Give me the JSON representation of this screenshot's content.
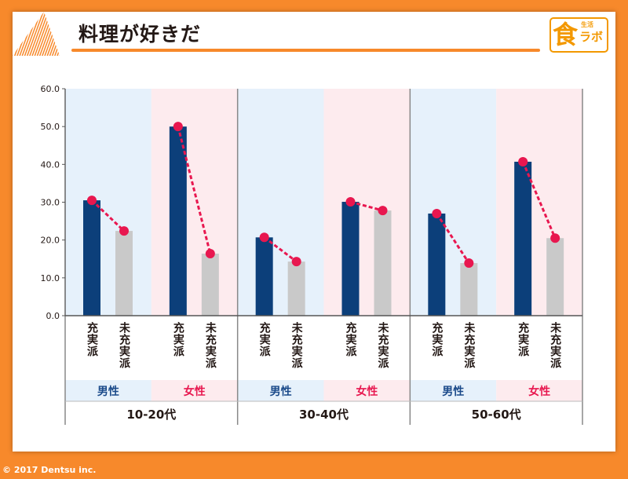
{
  "title": "料理が好きだ",
  "logo": {
    "big": "食",
    "small": "生活",
    "mid": "ラボ"
  },
  "copyright": "© 2017 Dentsu inc.",
  "colors": {
    "satisfied": "#0c3f7a",
    "unsatisfied": "#c9c9c9",
    "line": "#e8174f",
    "male_bg": "#e6f1fb",
    "female_bg": "#fdebee",
    "male_text": "#1a4a8a",
    "female_text": "#e8174f",
    "accent": "#f7892b"
  },
  "chart_data": {
    "type": "bar",
    "title": "料理が好きだ",
    "ylim": [
      0,
      60
    ],
    "yticks": [
      "0.0",
      "10.0",
      "20.0",
      "30.0",
      "40.0",
      "50.0",
      "60.0"
    ],
    "categories_level1": [
      "充実派",
      "未充実派"
    ],
    "genders": [
      "男性",
      "女性"
    ],
    "age_groups": [
      "10-20代",
      "30-40代",
      "50-60代"
    ],
    "series": [
      {
        "age": "10-20代",
        "gender": "男性",
        "values": [
          30.5,
          22.4
        ]
      },
      {
        "age": "10-20代",
        "gender": "女性",
        "values": [
          50.0,
          16.4
        ]
      },
      {
        "age": "30-40代",
        "gender": "男性",
        "values": [
          20.7,
          14.3
        ]
      },
      {
        "age": "30-40代",
        "gender": "女性",
        "values": [
          30.1,
          27.8
        ]
      },
      {
        "age": "50-60代",
        "gender": "男性",
        "values": [
          27.0,
          13.9
        ]
      },
      {
        "age": "50-60代",
        "gender": "女性",
        "values": [
          40.7,
          20.5
        ]
      }
    ],
    "grid": false,
    "legend": "none"
  }
}
